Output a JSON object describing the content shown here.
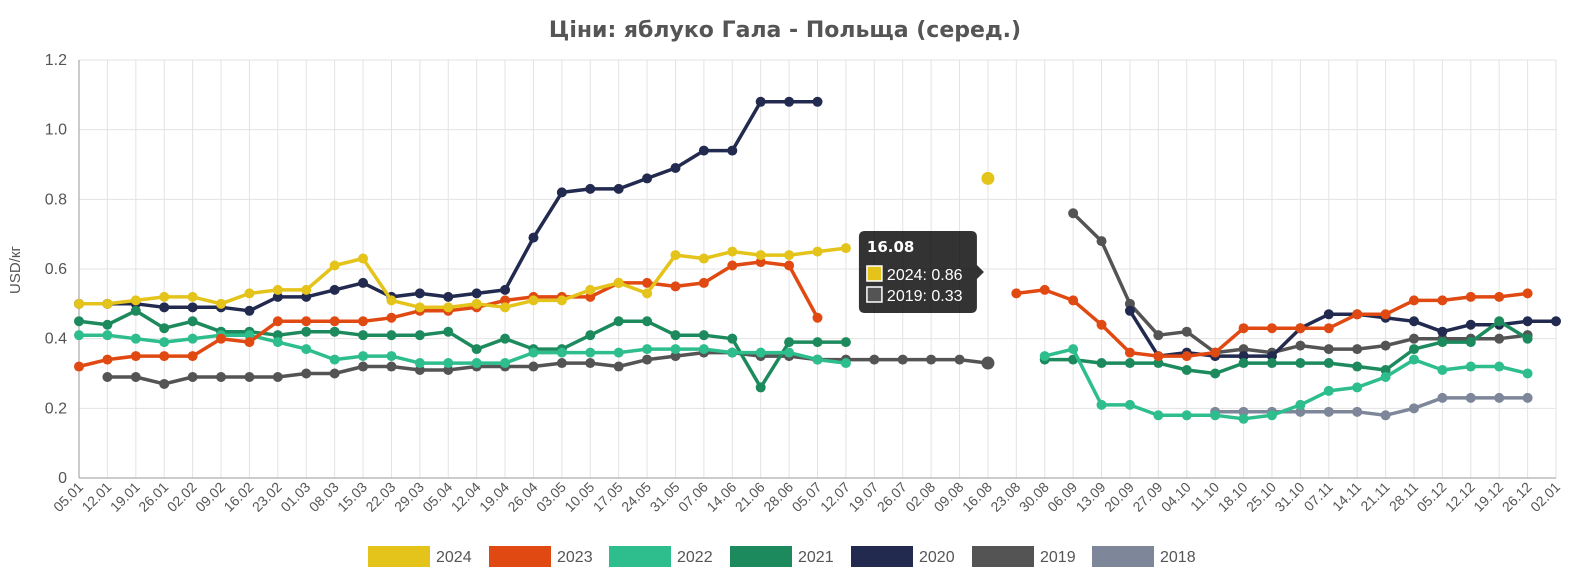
{
  "chart_data": {
    "type": "line",
    "title": "Ціни: яблуко Гала - Польща (серед.)",
    "xlabel": "",
    "ylabel": "USD/кг",
    "ylim": [
      0,
      1.2
    ],
    "yticks": [
      "0",
      "0.2",
      "0.4",
      "0.6",
      "0.8",
      "1.0",
      "1.2"
    ],
    "grid": true,
    "legend_position": "bottom",
    "categories": [
      "05.01",
      "12.01",
      "19.01",
      "26.01",
      "02.02",
      "09.02",
      "16.02",
      "23.02",
      "01.03",
      "08.03",
      "15.03",
      "22.03",
      "29.03",
      "05.04",
      "12.04",
      "19.04",
      "26.04",
      "03.05",
      "10.05",
      "17.05",
      "24.05",
      "31.05",
      "07.06",
      "14.06",
      "21.06",
      "28.06",
      "05.07",
      "12.07",
      "19.07",
      "26.07",
      "02.08",
      "09.08",
      "16.08",
      "23.08",
      "30.08",
      "06.09",
      "13.09",
      "20.09",
      "27.09",
      "04.10",
      "11.10",
      "18.10",
      "25.10",
      "31.10",
      "07.11",
      "14.11",
      "21.11",
      "28.11",
      "05.12",
      "12.12",
      "19.12",
      "26.12",
      "02.01"
    ],
    "series": [
      {
        "name": "2024",
        "color": "#e4c31b",
        "values": [
          0.5,
          0.5,
          0.51,
          0.52,
          0.52,
          0.5,
          0.53,
          0.54,
          0.54,
          0.61,
          0.63,
          0.51,
          0.49,
          0.49,
          0.5,
          0.49,
          0.51,
          0.51,
          0.54,
          0.56,
          0.53,
          0.64,
          0.63,
          0.65,
          0.64,
          0.64,
          0.65,
          0.66,
          null,
          null,
          null,
          null,
          0.86,
          null,
          null,
          null,
          null,
          null,
          null,
          null,
          null,
          null,
          null,
          null,
          null,
          null,
          null,
          null,
          null,
          null,
          null,
          null,
          null
        ]
      },
      {
        "name": "2023",
        "color": "#e04a12",
        "values": [
          0.32,
          0.34,
          0.35,
          0.35,
          0.35,
          0.4,
          0.39,
          0.45,
          0.45,
          0.45,
          0.45,
          0.46,
          0.48,
          0.48,
          0.49,
          0.51,
          0.52,
          0.52,
          0.52,
          0.56,
          0.56,
          0.55,
          0.56,
          0.61,
          0.62,
          0.61,
          0.46,
          null,
          null,
          null,
          null,
          null,
          null,
          0.53,
          0.54,
          0.51,
          0.44,
          0.36,
          0.35,
          0.35,
          0.36,
          0.43,
          0.43,
          0.43,
          0.43,
          0.47,
          0.47,
          0.51,
          0.51,
          0.52,
          0.52,
          0.53,
          null
        ]
      },
      {
        "name": "2022",
        "color": "#2ebd8c",
        "values": [
          0.41,
          0.41,
          0.4,
          0.39,
          0.4,
          0.41,
          0.41,
          0.39,
          0.37,
          0.34,
          0.35,
          0.35,
          0.33,
          0.33,
          0.33,
          0.33,
          0.36,
          0.36,
          0.36,
          0.36,
          0.37,
          0.37,
          0.37,
          0.36,
          0.36,
          0.36,
          0.34,
          0.33,
          null,
          null,
          null,
          null,
          null,
          null,
          0.35,
          0.37,
          0.21,
          0.21,
          0.18,
          0.18,
          0.18,
          0.17,
          0.18,
          0.21,
          0.25,
          0.26,
          0.29,
          0.34,
          0.31,
          0.32,
          0.32,
          0.3,
          null
        ]
      },
      {
        "name": "2021",
        "color": "#1d8a5e",
        "values": [
          0.45,
          0.44,
          0.48,
          0.43,
          0.45,
          0.42,
          0.42,
          0.41,
          0.42,
          0.42,
          0.41,
          0.41,
          0.41,
          0.42,
          0.37,
          0.4,
          0.37,
          0.37,
          0.41,
          0.45,
          0.45,
          0.41,
          0.41,
          0.4,
          0.26,
          0.39,
          0.39,
          0.39,
          null,
          null,
          null,
          null,
          null,
          null,
          0.34,
          0.34,
          0.33,
          0.33,
          0.33,
          0.31,
          0.3,
          0.33,
          0.33,
          0.33,
          0.33,
          0.32,
          0.31,
          0.37,
          0.39,
          0.39,
          0.45,
          0.4,
          null
        ]
      },
      {
        "name": "2020",
        "color": "#232a4f",
        "values": [
          0.5,
          0.5,
          0.5,
          0.49,
          0.49,
          0.49,
          0.48,
          0.52,
          0.52,
          0.54,
          0.56,
          0.52,
          0.53,
          0.52,
          0.53,
          0.54,
          0.69,
          0.82,
          0.83,
          0.83,
          0.86,
          0.89,
          0.94,
          0.94,
          1.08,
          1.08,
          1.08,
          null,
          null,
          null,
          null,
          null,
          null,
          null,
          null,
          null,
          null,
          0.48,
          0.35,
          0.36,
          0.35,
          0.35,
          0.35,
          0.43,
          0.47,
          0.47,
          0.46,
          0.45,
          0.42,
          0.44,
          0.44,
          0.45,
          0.45
        ]
      },
      {
        "name": "2019",
        "color": "#545454",
        "values": [
          null,
          0.29,
          0.29,
          0.27,
          0.29,
          0.29,
          0.29,
          0.29,
          0.3,
          0.3,
          0.32,
          0.32,
          0.31,
          0.31,
          0.32,
          0.32,
          0.32,
          0.33,
          0.33,
          0.32,
          0.34,
          0.35,
          0.36,
          0.36,
          0.35,
          0.35,
          0.34,
          0.34,
          0.34,
          0.34,
          0.34,
          0.34,
          0.33,
          null,
          null,
          0.76,
          0.68,
          0.5,
          0.41,
          0.42,
          0.36,
          0.37,
          0.36,
          0.38,
          0.37,
          0.37,
          0.38,
          0.4,
          0.4,
          0.4,
          0.4,
          0.41,
          null
        ]
      },
      {
        "name": "2018",
        "color": "#7e8699",
        "values": [
          null,
          null,
          null,
          null,
          null,
          null,
          null,
          null,
          null,
          null,
          null,
          null,
          null,
          null,
          null,
          null,
          null,
          null,
          null,
          null,
          null,
          null,
          null,
          null,
          null,
          null,
          null,
          null,
          null,
          null,
          null,
          null,
          null,
          null,
          null,
          null,
          null,
          null,
          null,
          null,
          0.19,
          0.19,
          0.19,
          0.19,
          0.19,
          0.19,
          0.18,
          0.2,
          0.23,
          0.23,
          0.23,
          0.23,
          null
        ]
      }
    ],
    "tooltip": {
      "title": "16.08",
      "items": [
        {
          "label": "2024: 0.86",
          "color": "#e4c31b"
        },
        {
          "label": "2019: 0.33",
          "color": "#545454"
        }
      ]
    }
  }
}
